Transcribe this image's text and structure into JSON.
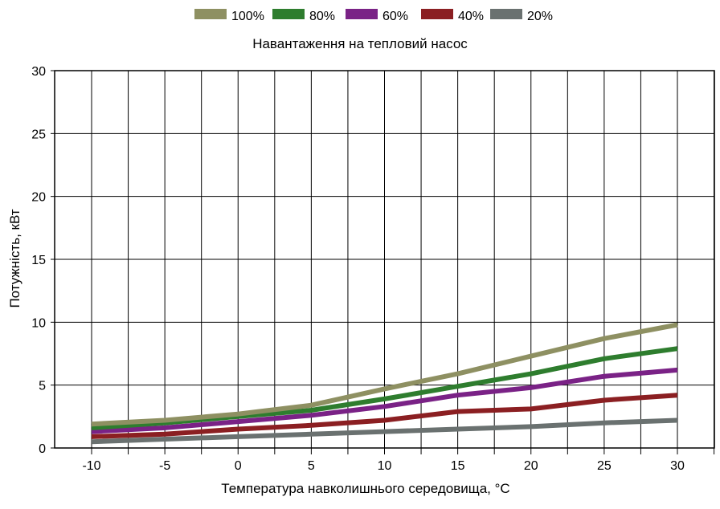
{
  "chart_data": {
    "type": "line",
    "subtitle": "Навантаження на тепловий насос",
    "xlabel": "Температура навколишнього середовища, °C",
    "ylabel": "Потужність, кВт",
    "x": [
      -10,
      -5,
      0,
      5,
      10,
      15,
      20,
      25,
      30
    ],
    "x_ticks": [
      "-10",
      "-5",
      "0",
      "5",
      "10",
      "15",
      "20",
      "25",
      "30"
    ],
    "y_ticks": [
      "0",
      "5",
      "10",
      "15",
      "20",
      "25",
      "30"
    ],
    "xlim": [
      -12.5,
      30
    ],
    "ylim": [
      0,
      30
    ],
    "grid": true,
    "legend_position": "top-center",
    "series": [
      {
        "name": "100%",
        "color": "#8e9062",
        "values": [
          1.9,
          2.2,
          2.7,
          3.4,
          4.7,
          5.9,
          7.3,
          8.7,
          9.8
        ]
      },
      {
        "name": "80%",
        "color": "#2e7d2e",
        "values": [
          1.6,
          2.0,
          2.5,
          3.0,
          3.9,
          4.9,
          5.9,
          7.1,
          7.9
        ]
      },
      {
        "name": "60%",
        "color": "#7a2286",
        "values": [
          1.3,
          1.6,
          2.1,
          2.6,
          3.3,
          4.2,
          4.8,
          5.7,
          6.2
        ]
      },
      {
        "name": "40%",
        "color": "#8b1f22",
        "values": [
          0.9,
          1.1,
          1.5,
          1.8,
          2.2,
          2.9,
          3.1,
          3.8,
          4.2
        ]
      },
      {
        "name": "20%",
        "color": "#6a7170",
        "values": [
          0.5,
          0.7,
          0.9,
          1.1,
          1.3,
          1.5,
          1.7,
          2.0,
          2.2
        ]
      }
    ]
  }
}
